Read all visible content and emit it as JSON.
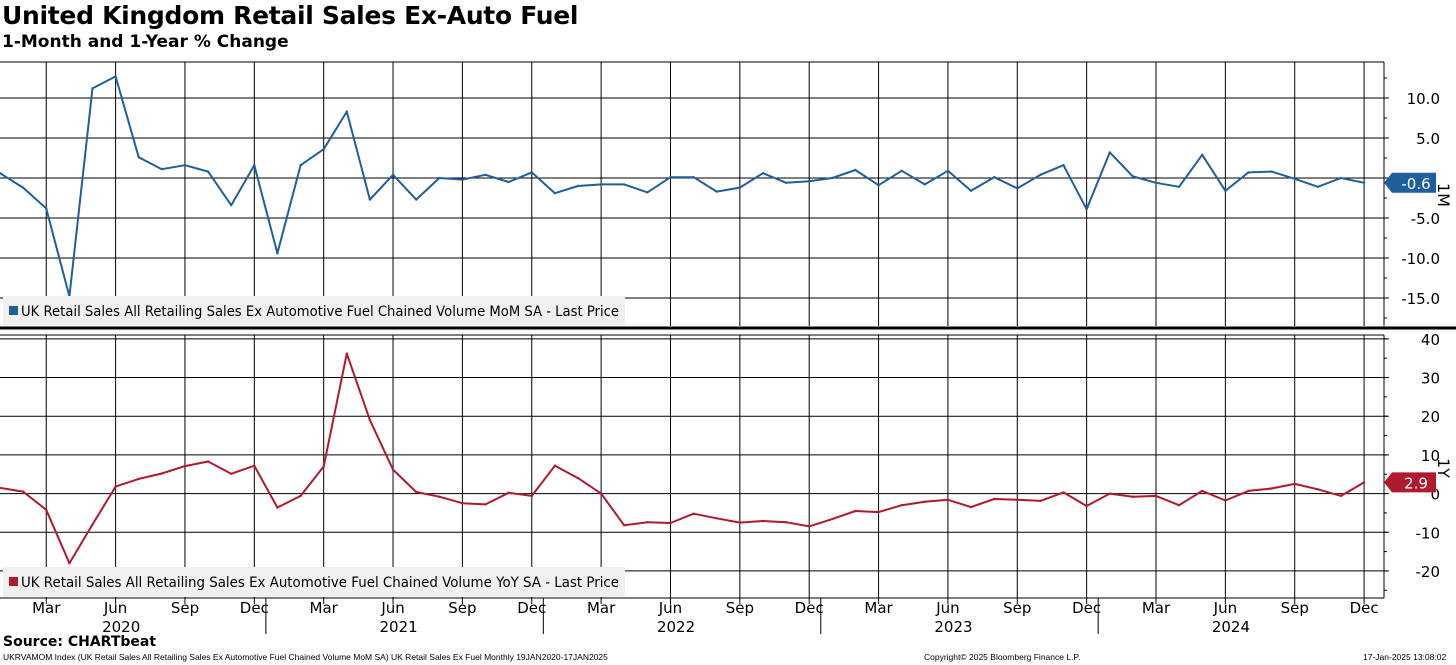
{
  "header": {
    "title": "United Kingdom Retail Sales Ex-Auto Fuel",
    "subtitle": "1-Month and 1-Year % Change"
  },
  "footer": {
    "source": "Source: CHARTbeat",
    "index_note": "UKRVAMOM Index (UK Retail Sales All Retailing Sales Ex Automotive Fuel Chained Volume MoM SA) UK Retail Sales Ex Fuel  Monthly 19JAN2020-17JAN2025",
    "copyright": "Copyright© 2025 Bloomberg Finance L.P.",
    "timestamp": "17-Jan-2025 13:08:02"
  },
  "colors": {
    "mom": "#1f5f9c",
    "yoy": "#b01a2e",
    "grid": "#000000"
  },
  "chart_data": [
    {
      "type": "line",
      "panel": "top",
      "side_label": "1M",
      "legend": "UK Retail Sales All Retailing Sales Ex Automotive Fuel Chained Volume MoM SA - Last Price",
      "last_value_label": "-0.6",
      "ylim": [
        -18.5,
        14.5
      ],
      "yticks": [
        10.0,
        5.0,
        0,
        -5.0,
        -10.0,
        -15.0
      ],
      "ytick_labels": [
        "10.0",
        "5.0",
        "",
        "-5.0",
        "-10.0",
        "-15.0"
      ],
      "x": [
        "2020-01",
        "2020-02",
        "2020-03",
        "2020-04",
        "2020-05",
        "2020-06",
        "2020-07",
        "2020-08",
        "2020-09",
        "2020-10",
        "2020-11",
        "2020-12",
        "2021-01",
        "2021-02",
        "2021-03",
        "2021-04",
        "2021-05",
        "2021-06",
        "2021-07",
        "2021-08",
        "2021-09",
        "2021-10",
        "2021-11",
        "2021-12",
        "2022-01",
        "2022-02",
        "2022-03",
        "2022-04",
        "2022-05",
        "2022-06",
        "2022-07",
        "2022-08",
        "2022-09",
        "2022-10",
        "2022-11",
        "2022-12",
        "2023-01",
        "2023-02",
        "2023-03",
        "2023-04",
        "2023-05",
        "2023-06",
        "2023-07",
        "2023-08",
        "2023-09",
        "2023-10",
        "2023-11",
        "2023-12",
        "2024-01",
        "2024-02",
        "2024-03",
        "2024-04",
        "2024-05",
        "2024-06",
        "2024-07",
        "2024-08",
        "2024-09",
        "2024-10",
        "2024-11",
        "2024-12"
      ],
      "values": [
        0.6,
        -1.2,
        -3.8,
        -14.8,
        11.2,
        12.7,
        2.6,
        1.1,
        1.6,
        0.8,
        -3.4,
        1.6,
        -9.4,
        1.6,
        3.6,
        8.3,
        -2.7,
        0.4,
        -2.7,
        0,
        -0.2,
        0.4,
        -0.5,
        0.7,
        -1.9,
        -1.0,
        -0.8,
        -0.8,
        -1.8,
        0.1,
        0.1,
        -1.7,
        -1.2,
        0.6,
        -0.6,
        -0.4,
        0.0,
        1.0,
        -0.9,
        0.9,
        -0.8,
        0.9,
        -1.6,
        0.1,
        -1.3,
        0.4,
        1.6,
        -3.9,
        3.2,
        0.2,
        -0.6,
        -1.1,
        2.9,
        -1.6,
        0.7,
        0.8,
        -0.1,
        -1.1,
        0.0,
        -0.6
      ]
    },
    {
      "type": "line",
      "panel": "bottom",
      "side_label": "1Y",
      "legend": "UK Retail Sales All Retailing Sales Ex Automotive Fuel Chained Volume YoY SA - Last Price",
      "last_value_label": "2.9",
      "ylim": [
        -27,
        41
      ],
      "yticks": [
        40,
        30,
        20,
        10,
        0,
        -10,
        -20
      ],
      "ytick_labels": [
        "40",
        "30",
        "20",
        "10",
        "0",
        "-10",
        "-20"
      ],
      "x": [
        "2020-01",
        "2020-02",
        "2020-03",
        "2020-04",
        "2020-05",
        "2020-06",
        "2020-07",
        "2020-08",
        "2020-09",
        "2020-10",
        "2020-11",
        "2020-12",
        "2021-01",
        "2021-02",
        "2021-03",
        "2021-04",
        "2021-05",
        "2021-06",
        "2021-07",
        "2021-08",
        "2021-09",
        "2021-10",
        "2021-11",
        "2021-12",
        "2022-01",
        "2022-02",
        "2022-03",
        "2022-04",
        "2022-05",
        "2022-06",
        "2022-07",
        "2022-08",
        "2022-09",
        "2022-10",
        "2022-11",
        "2022-12",
        "2023-01",
        "2023-02",
        "2023-03",
        "2023-04",
        "2023-05",
        "2023-06",
        "2023-07",
        "2023-08",
        "2023-09",
        "2023-10",
        "2023-11",
        "2023-12",
        "2024-01",
        "2024-02",
        "2024-03",
        "2024-04",
        "2024-05",
        "2024-06",
        "2024-07",
        "2024-08",
        "2024-09",
        "2024-10",
        "2024-11",
        "2024-12"
      ],
      "values": [
        1.5,
        0.5,
        -4.2,
        -18.0,
        -8.0,
        1.8,
        3.8,
        5.2,
        7.1,
        8.3,
        5.1,
        7.2,
        -3.6,
        -0.6,
        7.0,
        36.2,
        19.0,
        6.2,
        0.4,
        -0.8,
        -2.5,
        -2.8,
        0.2,
        -0.6,
        7.2,
        4.0,
        0.0,
        -8.2,
        -7.4,
        -7.6,
        -5.2,
        -6.4,
        -7.5,
        -7.1,
        -7.4,
        -8.5,
        -6.6,
        -4.5,
        -4.8,
        -3.0,
        -2.1,
        -1.6,
        -3.5,
        -1.4,
        -1.6,
        -1.9,
        0.3,
        -3.2,
        0.0,
        -0.8,
        -0.6,
        -3.0,
        0.7,
        -1.8,
        0.7,
        1.3,
        2.5,
        1.1,
        -0.6,
        2.9
      ]
    }
  ],
  "x_axis": {
    "month_ticks": [
      {
        "date": "2020-03",
        "label": "Mar"
      },
      {
        "date": "2020-06",
        "label": "Jun"
      },
      {
        "date": "2020-09",
        "label": "Sep"
      },
      {
        "date": "2020-12",
        "label": "Dec"
      },
      {
        "date": "2021-03",
        "label": "Mar"
      },
      {
        "date": "2021-06",
        "label": "Jun"
      },
      {
        "date": "2021-09",
        "label": "Sep"
      },
      {
        "date": "2021-12",
        "label": "Dec"
      },
      {
        "date": "2022-03",
        "label": "Mar"
      },
      {
        "date": "2022-06",
        "label": "Jun"
      },
      {
        "date": "2022-09",
        "label": "Sep"
      },
      {
        "date": "2022-12",
        "label": "Dec"
      },
      {
        "date": "2023-03",
        "label": "Mar"
      },
      {
        "date": "2023-06",
        "label": "Jun"
      },
      {
        "date": "2023-09",
        "label": "Sep"
      },
      {
        "date": "2023-12",
        "label": "Dec"
      },
      {
        "date": "2024-03",
        "label": "Mar"
      },
      {
        "date": "2024-06",
        "label": "Jun"
      },
      {
        "date": "2024-09",
        "label": "Sep"
      },
      {
        "date": "2024-12",
        "label": "Dec"
      }
    ],
    "years": [
      "2020",
      "2021",
      "2022",
      "2023",
      "2024"
    ]
  }
}
